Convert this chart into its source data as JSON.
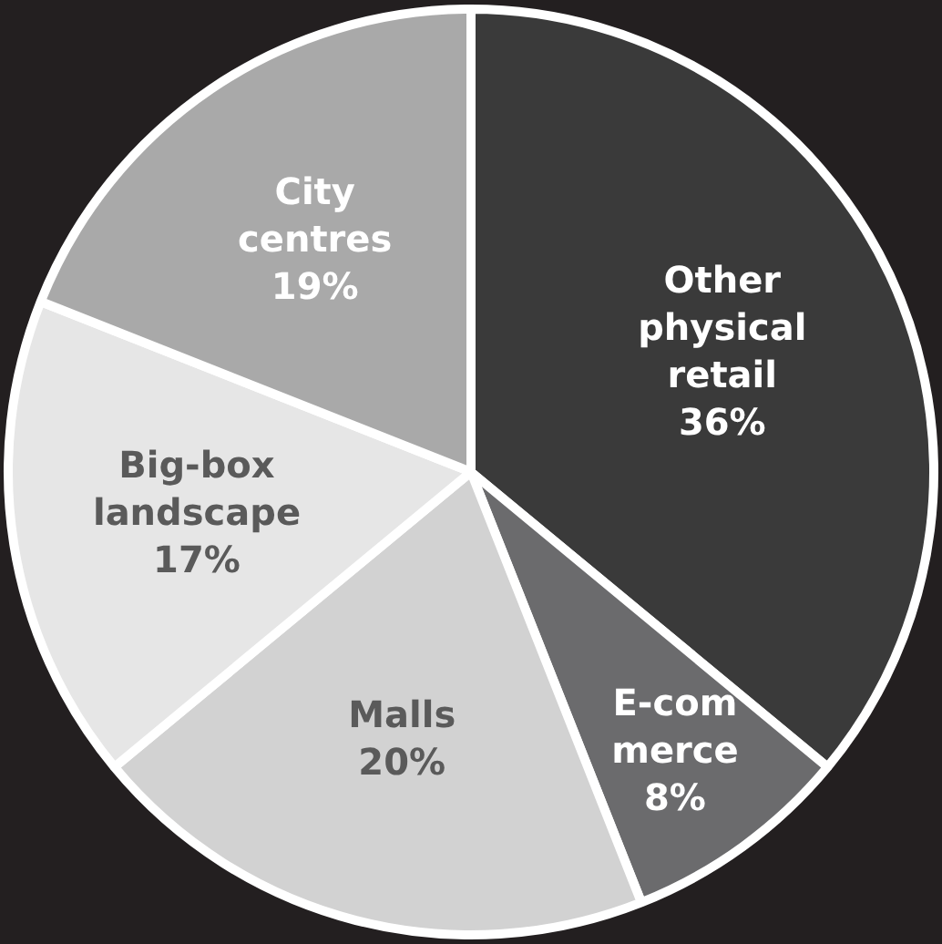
{
  "chart_data": {
    "type": "pie",
    "categories": [
      "Other physical retail",
      "E-com\nmerce",
      "Malls",
      "Big-box landscape",
      "City centres"
    ],
    "values": [
      36,
      8,
      20,
      17,
      19
    ],
    "value_labels": [
      "36%",
      "8%",
      "20%",
      "17%",
      "19%"
    ],
    "colors": [
      "#3a3a3a",
      "#6b6b6d",
      "#d2d2d2",
      "#e6e6e6",
      "#a9a9a9"
    ],
    "legend": false
  }
}
